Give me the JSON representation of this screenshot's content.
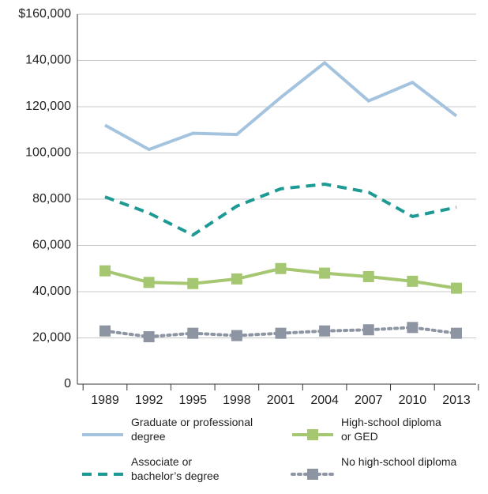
{
  "chart_data": {
    "type": "line",
    "categories": [
      "1989",
      "1992",
      "1995",
      "1998",
      "2001",
      "2004",
      "2007",
      "2010",
      "2013"
    ],
    "series": [
      {
        "name": "Graduate or professional degree",
        "color": "#a4c3df",
        "style": "solid",
        "marker": false,
        "values": [
          112000,
          101500,
          108500,
          108000,
          124000,
          139000,
          122500,
          130500,
          116000
        ]
      },
      {
        "name": "Associate or bachelor’s degree",
        "color": "#1e9a94",
        "style": "dashed",
        "marker": false,
        "values": [
          81000,
          74000,
          64500,
          77000,
          84500,
          86500,
          83000,
          72500,
          76500
        ]
      },
      {
        "name": "High-school diploma or GED",
        "color": "#a6c772",
        "style": "solid",
        "marker": true,
        "values": [
          49000,
          44000,
          43500,
          45500,
          50000,
          48000,
          46500,
          44500,
          41500
        ]
      },
      {
        "name": "No high-school diploma",
        "color": "#8c95a1",
        "style": "dotted",
        "marker": true,
        "values": [
          23000,
          20500,
          22000,
          21000,
          22000,
          23000,
          23500,
          24500,
          22000
        ]
      }
    ],
    "ylim": [
      0,
      160000
    ],
    "yticks": [
      0,
      {
        "value": 20000,
        "label": "20,000"
      },
      {
        "value": 40000,
        "label": "40,000"
      },
      {
        "value": 60000,
        "label": "60,000"
      },
      {
        "value": 80000,
        "label": "80,000"
      },
      {
        "value": 100000,
        "label": "100,000"
      },
      {
        "value": 120000,
        "label": "120,000"
      },
      {
        "value": 140000,
        "label": "140,000"
      },
      {
        "value": 160000,
        "label": "$160,000"
      }
    ],
    "grid": true
  }
}
